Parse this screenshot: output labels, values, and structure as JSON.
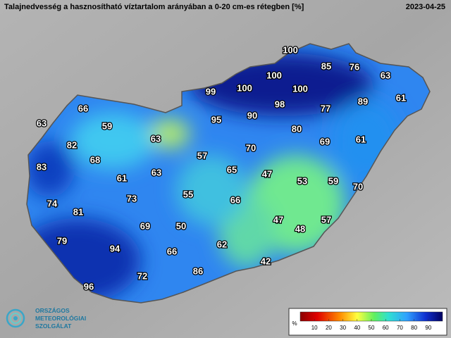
{
  "header": {
    "title": "Talajnedvesség a hasznosítható víztartalom arányában a 0-20 cm-es rétegben [%]",
    "date": "2023-04-25"
  },
  "stations": [
    100,
    85,
    76,
    63,
    100,
    99,
    100,
    100,
    61,
    89,
    98,
    77,
    90,
    95,
    66,
    63,
    59,
    80,
    63,
    69,
    61,
    82,
    70,
    57,
    68,
    83,
    65,
    47,
    63,
    61,
    53,
    59,
    70,
    55,
    73,
    66,
    74,
    81,
    47,
    57,
    48,
    69,
    50,
    79,
    62,
    94,
    66,
    42,
    86,
    72,
    96
  ],
  "colorbar": {
    "unit": "%",
    "ticks": [
      10,
      20,
      30,
      40,
      50,
      60,
      70,
      80,
      90
    ]
  },
  "logo": {
    "line1": "ORSZÁGOS",
    "line2": "METEOROLÓGIAI",
    "line3": "SZOLGÁLAT"
  }
}
